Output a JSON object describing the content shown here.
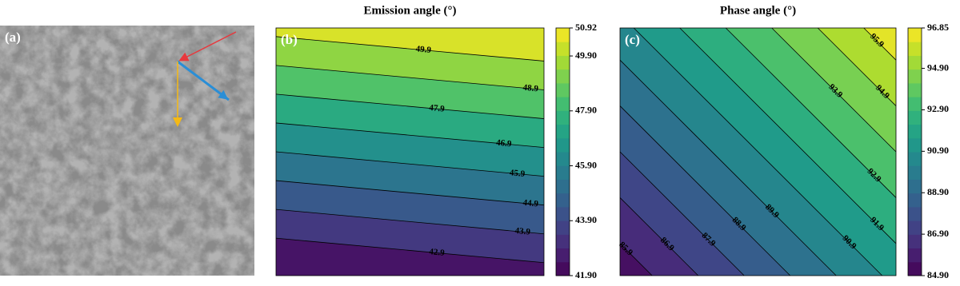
{
  "panels": [
    {
      "label": "(a)"
    }
  ],
  "chart_data": [
    {
      "type": "contour",
      "title": "Emission angle (°)",
      "panel_label": "(b)",
      "colormap": "viridis",
      "levels": [
        42.9,
        43.9,
        44.9,
        45.9,
        46.9,
        47.9,
        48.9,
        49.9
      ],
      "clim": [
        41.9,
        50.92
      ],
      "cticks": [
        {
          "value": 41.9,
          "label": "41.90"
        },
        {
          "value": 43.9,
          "label": "43.90"
        },
        {
          "value": 45.9,
          "label": "45.90"
        },
        {
          "value": 47.9,
          "label": "47.90"
        },
        {
          "value": 49.9,
          "label": "49.90"
        },
        50.92
      ]
    },
    {
      "type": "contour",
      "title": "Phase angle (°)",
      "panel_label": "(c)",
      "colormap": "viridis",
      "levels": [
        85.9,
        86.9,
        87.9,
        88.9,
        89.9,
        90.9,
        91.9,
        92.9,
        93.9,
        94.9,
        95.9
      ],
      "clim": [
        84.9,
        96.85
      ],
      "cticks": [
        {
          "value": 84.9,
          "label": "84.90"
        },
        {
          "value": 86.9,
          "label": "86.90"
        },
        {
          "value": 88.9,
          "label": "88.90"
        },
        {
          "value": 90.9,
          "label": "90.90"
        },
        {
          "value": 92.9,
          "label": "92.90"
        },
        {
          "value": 94.9,
          "label": "94.90"
        },
        96.85
      ]
    }
  ]
}
